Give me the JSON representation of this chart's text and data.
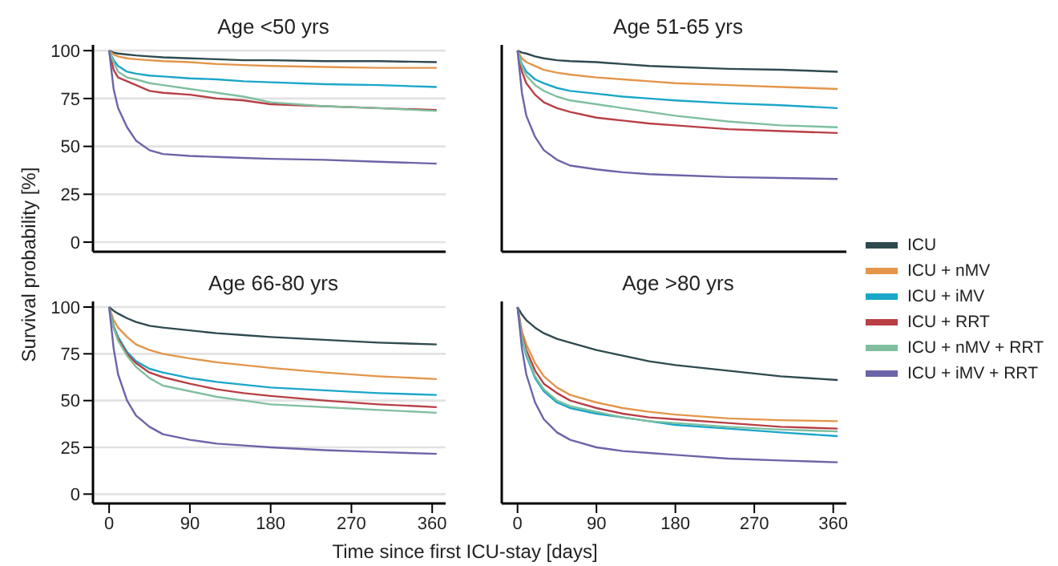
{
  "chart_data": [
    {
      "type": "line",
      "title": "Age <50 yrs",
      "ylabel": "Survival probability [%]",
      "x": [
        0,
        5,
        10,
        20,
        30,
        45,
        60,
        90,
        120,
        150,
        180,
        240,
        300,
        365
      ],
      "xlim": [
        -18,
        375
      ],
      "ylim": [
        -5,
        103
      ],
      "xticks": [
        0,
        90,
        180,
        270,
        360
      ],
      "yticks": [
        0,
        25,
        50,
        75,
        100
      ],
      "grid": "y",
      "tick_labels": "y",
      "legend": "right",
      "series": [
        {
          "name": "ICU",
          "color": "#2e4a4f",
          "values": [
            100,
            99,
            98.5,
            98,
            97.5,
            97,
            96.5,
            96,
            95.5,
            95,
            95,
            94.5,
            94.5,
            94
          ]
        },
        {
          "name": "ICU + nMV",
          "color": "#e3954a",
          "values": [
            100,
            98,
            97,
            96,
            95.5,
            95,
            94.5,
            94,
            93,
            92.5,
            92,
            91.5,
            91,
            91
          ]
        },
        {
          "name": "ICU + iMV",
          "color": "#1aa6c9",
          "values": [
            100,
            95,
            92,
            89,
            88,
            87,
            86.5,
            85.5,
            85,
            84,
            83.5,
            82.5,
            82,
            81
          ]
        },
        {
          "name": "ICU + RRT",
          "color": "#b83f45",
          "values": [
            100,
            90,
            86,
            84,
            82,
            79,
            78,
            77,
            75,
            74,
            72,
            71,
            70,
            69
          ]
        },
        {
          "name": "ICU + nMV + RRT",
          "color": "#7fbf9f",
          "values": [
            100,
            94,
            89,
            86,
            85,
            83,
            82,
            80,
            78,
            76,
            73,
            71,
            70,
            68.5
          ]
        },
        {
          "name": "ICU + iMV + RRT",
          "color": "#6b64a8",
          "values": [
            100,
            80,
            70,
            60,
            53,
            48,
            46,
            45,
            44.5,
            44,
            43.5,
            43,
            42,
            41
          ]
        }
      ]
    },
    {
      "type": "line",
      "title": "Age 51-65 yrs",
      "x": [
        0,
        5,
        10,
        20,
        30,
        45,
        60,
        90,
        120,
        150,
        180,
        240,
        300,
        365
      ],
      "xlim": [
        -18,
        375
      ],
      "ylim": [
        -5,
        103
      ],
      "xticks": [
        0,
        90,
        180,
        270,
        360
      ],
      "yticks": [
        0,
        25,
        50,
        75,
        100
      ],
      "grid": "y",
      "tick_labels": false,
      "series": [
        {
          "color": "#2e4a4f",
          "values": [
            100,
            99,
            98.5,
            97,
            96,
            95,
            94.5,
            94,
            93,
            92,
            91.5,
            90.5,
            90,
            89
          ]
        },
        {
          "color": "#e3954a",
          "values": [
            100,
            96,
            94,
            92,
            90,
            88.5,
            87.5,
            86,
            85,
            84,
            83,
            82,
            81,
            80
          ]
        },
        {
          "color": "#1aa6c9",
          "values": [
            100,
            93,
            89,
            85,
            83,
            80.5,
            79,
            77.5,
            76,
            75,
            74,
            72.5,
            71.5,
            70
          ]
        },
        {
          "color": "#b83f45",
          "values": [
            100,
            89,
            83,
            77,
            73,
            70,
            68,
            65,
            63.5,
            62,
            61,
            59,
            58,
            57
          ]
        },
        {
          "color": "#7fbf9f",
          "values": [
            100,
            92,
            87,
            82,
            79,
            76,
            74,
            72,
            70,
            68,
            66,
            63,
            61,
            60
          ]
        },
        {
          "color": "#6b64a8",
          "values": [
            100,
            78,
            66,
            55,
            48,
            43,
            40,
            38,
            36.5,
            35.5,
            35,
            34,
            33.5,
            33
          ]
        }
      ]
    },
    {
      "type": "line",
      "title": "Age 66-80 yrs",
      "x": [
        0,
        5,
        10,
        20,
        30,
        45,
        60,
        90,
        120,
        150,
        180,
        240,
        300,
        365
      ],
      "xlim": [
        -18,
        375
      ],
      "ylim": [
        -5,
        103
      ],
      "xticks": [
        0,
        90,
        180,
        270,
        360
      ],
      "yticks": [
        0,
        25,
        50,
        75,
        100
      ],
      "grid": "y",
      "series": [
        {
          "color": "#2e4a4f",
          "values": [
            100,
            98,
            96.5,
            94,
            92,
            90,
            89,
            87.5,
            86,
            85,
            84,
            82.5,
            81,
            80
          ]
        },
        {
          "color": "#e3954a",
          "values": [
            100,
            93,
            89,
            84,
            80,
            77,
            75,
            72.5,
            70.5,
            69,
            67.5,
            65,
            63,
            61.5
          ]
        },
        {
          "color": "#1aa6c9",
          "values": [
            100,
            90,
            84,
            76,
            71,
            67,
            65,
            62,
            60,
            58.5,
            57,
            55.5,
            54,
            53
          ]
        },
        {
          "color": "#b83f45",
          "values": [
            100,
            89,
            83,
            75,
            70,
            65,
            62.5,
            59,
            56,
            54,
            52.5,
            50,
            48,
            46.5
          ]
        },
        {
          "color": "#7fbf9f",
          "values": [
            100,
            89,
            82,
            74,
            68,
            62,
            58,
            55,
            52,
            50,
            48,
            46.5,
            45,
            43.5
          ]
        },
        {
          "color": "#6b64a8",
          "values": [
            100,
            78,
            64,
            50,
            42,
            36,
            32,
            29,
            27,
            26,
            25,
            23.5,
            22.5,
            21.5
          ]
        }
      ]
    },
    {
      "type": "line",
      "title": "Age >80 yrs",
      "xlabel": "Time since first ICU-stay [days]",
      "x": [
        0,
        5,
        10,
        20,
        30,
        45,
        60,
        90,
        120,
        150,
        180,
        240,
        300,
        365
      ],
      "xlim": [
        -18,
        375
      ],
      "ylim": [
        -5,
        103
      ],
      "xticks": [
        0,
        90,
        180,
        270,
        360
      ],
      "yticks": [
        0,
        25,
        50,
        75,
        100
      ],
      "grid": "y",
      "tick_labels": "x",
      "series": [
        {
          "color": "#2e4a4f",
          "values": [
            100,
            96,
            93,
            89,
            86,
            83,
            81,
            77,
            74,
            71,
            69,
            66,
            63,
            61
          ]
        },
        {
          "color": "#e3954a",
          "values": [
            100,
            87,
            80,
            70,
            63,
            57,
            53,
            49,
            46,
            44,
            42.5,
            40.5,
            39.5,
            39
          ]
        },
        {
          "color": "#1aa6c9",
          "values": [
            100,
            83,
            74,
            62,
            55,
            49,
            46,
            43,
            41,
            39,
            37,
            35,
            33,
            31
          ]
        },
        {
          "color": "#b83f45",
          "values": [
            100,
            85,
            77,
            66,
            59,
            54,
            50,
            46,
            43,
            41,
            40,
            38,
            36,
            35
          ]
        },
        {
          "color": "#7fbf9f",
          "values": [
            100,
            84,
            75,
            63,
            56,
            50,
            47,
            44,
            41,
            39,
            38,
            36,
            34.5,
            33.5
          ]
        },
        {
          "color": "#6b64a8",
          "values": [
            100,
            78,
            64,
            49,
            40,
            33,
            29,
            25,
            23,
            22,
            21,
            19,
            18,
            17
          ]
        }
      ]
    }
  ]
}
